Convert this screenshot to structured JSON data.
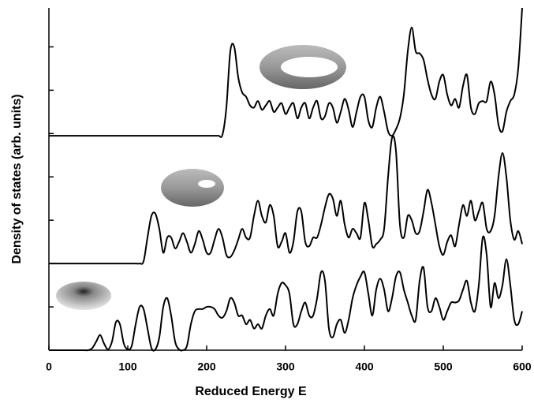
{
  "chart_data": {
    "type": "line",
    "xlabel": "Reduced Energy E",
    "ylabel": "Density of states (arb. units)",
    "x": [
      0,
      5,
      10,
      15,
      20,
      25,
      30,
      35,
      40,
      45,
      50,
      55,
      60,
      65,
      70,
      75,
      80,
      85,
      90,
      95,
      100,
      105,
      110,
      115,
      120,
      125,
      130,
      135,
      140,
      145,
      150,
      155,
      160,
      165,
      170,
      175,
      180,
      185,
      190,
      195,
      200,
      205,
      210,
      215,
      220,
      225,
      230,
      235,
      240,
      245,
      250,
      255,
      260,
      265,
      270,
      275,
      280,
      285,
      290,
      295,
      300,
      305,
      310,
      315,
      320,
      325,
      330,
      335,
      340,
      345,
      350,
      355,
      360,
      365,
      370,
      375,
      380,
      385,
      390,
      395,
      400,
      405,
      410,
      415,
      420,
      425,
      430,
      435,
      440,
      445,
      450,
      455,
      460,
      465,
      470,
      475,
      480,
      485,
      490,
      495,
      500,
      505,
      510,
      515,
      520,
      525,
      530,
      535,
      540,
      545,
      550,
      555,
      560,
      565,
      570,
      575,
      580,
      585,
      590,
      595,
      600
    ],
    "xlim": [
      0,
      600
    ],
    "xticks": [
      0,
      100,
      200,
      300,
      400,
      500,
      600
    ],
    "ylim": [
      0,
      7.9
    ],
    "yticks": [
      1,
      2,
      3,
      4,
      5,
      6,
      7
    ],
    "series": [
      {
        "color": "#000000",
        "values": [
          0,
          0,
          0,
          0,
          0,
          0,
          0,
          0,
          0,
          0,
          0,
          0.05,
          0.2,
          0.35,
          0.15,
          0.02,
          0.2,
          0.65,
          0.6,
          0.15,
          0.02,
          0.1,
          0.6,
          1.0,
          0.95,
          0.5,
          0.05,
          0.02,
          0.3,
          1.0,
          1.2,
          0.8,
          0.2,
          0.02,
          0,
          0.1,
          0.6,
          0.9,
          0.95,
          0.95,
          1.0,
          1.0,
          0.95,
          0.8,
          0.75,
          0.9,
          1.2,
          1.1,
          0.8,
          0.8,
          0.6,
          0.7,
          0.5,
          0.6,
          0.5,
          0.8,
          0.95,
          0.8,
          1.3,
          1.55,
          1.5,
          1.3,
          0.6,
          0.6,
          0.9,
          1.1,
          0.8,
          0.8,
          1.2,
          1.8,
          1.6,
          0.5,
          0.3,
          0.6,
          0.7,
          0.4,
          0.7,
          1.2,
          1.5,
          1.7,
          1.8,
          1.3,
          0.8,
          1.4,
          1.65,
          1.4,
          0.9,
          1.2,
          1.7,
          1.8,
          1.4,
          1.1,
          0.8,
          0.7,
          1.6,
          1.9,
          1.0,
          0.9,
          1.2,
          1.0,
          0.7,
          0.9,
          1.1,
          1.1,
          1.15,
          1.4,
          1.6,
          1.1,
          0.9,
          1.5,
          2.6,
          2.2,
          1.0,
          1.55,
          1.2,
          1.5,
          2.1,
          1.5,
          0.7,
          0.6,
          0.9
        ]
      },
      {
        "color": "#000000",
        "values": [
          2.0,
          2.0,
          2.0,
          2.0,
          2.0,
          2.0,
          2.0,
          2.0,
          2.0,
          2.0,
          2.0,
          2.0,
          2.0,
          2.0,
          2.0,
          2.0,
          2.0,
          2.0,
          2.0,
          2.0,
          2.0,
          2.0,
          2.0,
          2.0,
          2.05,
          2.6,
          3.1,
          3.15,
          2.8,
          2.25,
          2.6,
          2.6,
          2.35,
          2.5,
          2.7,
          2.5,
          2.25,
          2.45,
          2.75,
          2.55,
          2.25,
          2.25,
          2.55,
          2.8,
          2.6,
          2.2,
          2.15,
          2.3,
          2.55,
          2.8,
          2.6,
          2.6,
          3.1,
          3.45,
          3.1,
          2.95,
          3.35,
          3.1,
          2.4,
          2.5,
          2.7,
          2.25,
          2.5,
          3.2,
          3.2,
          2.5,
          2.4,
          2.6,
          2.6,
          2.9,
          3.3,
          3.6,
          3.5,
          3.1,
          3.45,
          2.9,
          2.6,
          2.8,
          2.7,
          2.6,
          3.4,
          3.0,
          2.4,
          2.45,
          2.55,
          2.8,
          4.0,
          4.9,
          4.6,
          2.9,
          2.6,
          3.1,
          3.0,
          2.7,
          2.75,
          3.2,
          3.7,
          3.4,
          2.9,
          2.4,
          2.2,
          2.5,
          2.65,
          2.4,
          2.9,
          3.35,
          3.1,
          3.45,
          3.0,
          3.2,
          3.4,
          2.8,
          2.75,
          3.1,
          4.0,
          4.55,
          4.0,
          3.0,
          2.55,
          2.75,
          2.45
        ]
      },
      {
        "color": "#000000",
        "values": [
          4.95,
          4.95,
          4.95,
          4.95,
          4.95,
          4.95,
          4.95,
          4.95,
          4.95,
          4.95,
          4.95,
          4.95,
          4.95,
          4.95,
          4.95,
          4.95,
          4.95,
          4.95,
          4.95,
          4.95,
          4.95,
          4.95,
          4.95,
          4.95,
          4.95,
          4.95,
          4.95,
          4.95,
          4.95,
          4.95,
          4.95,
          4.95,
          4.95,
          4.95,
          4.95,
          4.95,
          4.95,
          4.95,
          4.95,
          4.95,
          4.95,
          4.95,
          4.95,
          4.95,
          4.97,
          5.6,
          6.9,
          7.0,
          6.3,
          5.95,
          5.85,
          5.65,
          5.6,
          5.75,
          5.55,
          5.65,
          5.75,
          5.5,
          5.6,
          5.7,
          5.45,
          5.6,
          5.7,
          5.35,
          5.6,
          5.7,
          5.35,
          5.6,
          5.75,
          5.35,
          5.4,
          5.7,
          5.6,
          5.25,
          5.5,
          5.8,
          5.55,
          5.15,
          5.5,
          5.85,
          5.85,
          5.3,
          5.15,
          5.6,
          5.85,
          5.5,
          5.05,
          4.95,
          5.1,
          5.35,
          5.9,
          6.9,
          7.45,
          6.9,
          6.85,
          6.7,
          6.25,
          5.9,
          5.8,
          6.2,
          6.35,
          5.9,
          5.65,
          5.8,
          5.6,
          6.1,
          6.35,
          5.6,
          5.45,
          5.7,
          5.75,
          5.75,
          6.2,
          5.9,
          5.2,
          5.05,
          5.5,
          5.75,
          5.9,
          6.5,
          7.9
        ]
      }
    ]
  }
}
